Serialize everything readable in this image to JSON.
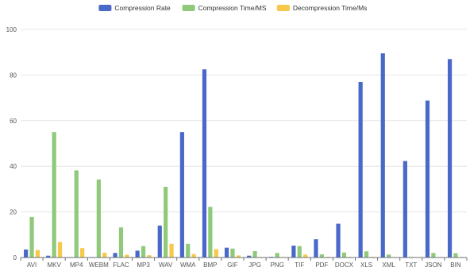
{
  "chart_data": {
    "type": "bar",
    "title": "",
    "xlabel": "",
    "ylabel": "",
    "ylim": [
      0,
      100
    ],
    "yticks": [
      0,
      20,
      40,
      60,
      80,
      100
    ],
    "grid": true,
    "legend_position": "top-center",
    "categories": [
      "AVI",
      "MKV",
      "MP4",
      "WEBM",
      "FLAC",
      "MP3",
      "WAV",
      "WMA",
      "BMP",
      "GIF",
      "JPG",
      "PNG",
      "TIF",
      "PDF",
      "DOCX",
      "XLS",
      "XML",
      "TXT",
      "JSON",
      "BIN"
    ],
    "series": [
      {
        "name": "Compression Rate",
        "color": "#4a68c8",
        "values": [
          3.5,
          0.8,
          0.2,
          0.2,
          2,
          3,
          14,
          55,
          82.5,
          4.3,
          0.8,
          0.3,
          5.2,
          8,
          14.8,
          77,
          89.5,
          42.3,
          68.8,
          87
        ]
      },
      {
        "name": "Compression Time/MS",
        "color": "#8fc97a",
        "values": [
          17.8,
          55,
          38.2,
          34.2,
          13.2,
          5,
          31,
          6,
          22.2,
          3.9,
          2.8,
          2,
          5,
          1.4,
          2.2,
          2.7,
          1.3,
          0.3,
          2,
          1.9
        ]
      },
      {
        "name": "Decompression Time/Ms",
        "color": "#f7c849",
        "values": [
          3.3,
          6.8,
          4.1,
          2.1,
          1.2,
          1,
          6,
          1.5,
          3.7,
          0.9,
          0.3,
          0.2,
          1.3,
          0.3,
          0.3,
          0.3,
          0.2,
          0.1,
          0.2,
          0.2
        ]
      }
    ]
  }
}
